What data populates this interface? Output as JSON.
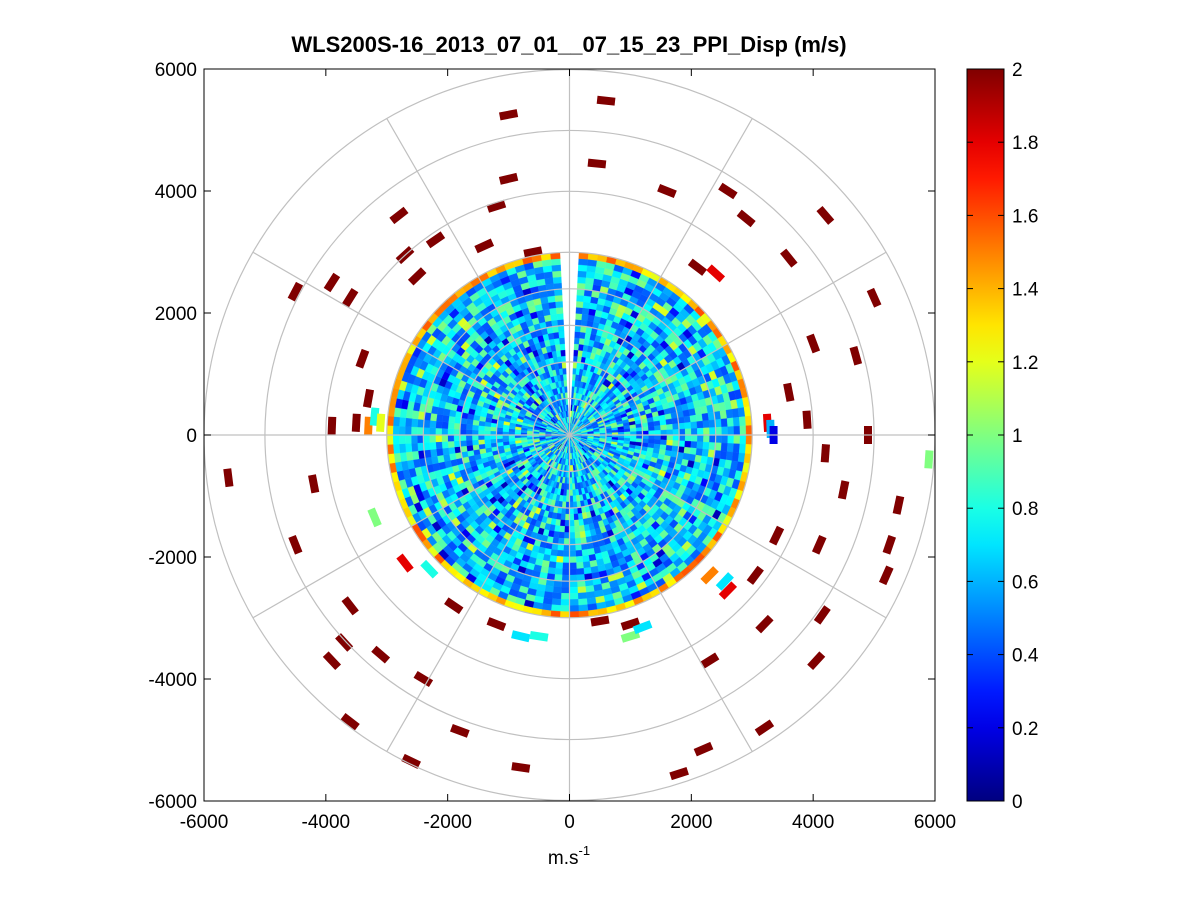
{
  "chart_data": {
    "type": "heatmap",
    "subtype": "polar-ppi",
    "title": "WLS200S-16_2013_07_01__07_15_23_PPI_Disp (m/s)",
    "xlabel": "m.s",
    "xlabel_superscript": "-1",
    "ylabel": "",
    "xlim": [
      -6000,
      6000
    ],
    "ylim": [
      -6000,
      6000
    ],
    "xticks": [
      -6000,
      -4000,
      -2000,
      0,
      2000,
      4000,
      6000
    ],
    "yticks": [
      6000,
      4000,
      2000,
      0,
      -2000,
      -4000,
      -6000
    ],
    "grid": true,
    "polar_grid": {
      "ring_radii": [
        600,
        1200,
        1800,
        2400,
        3000,
        4000,
        5000,
        6000
      ],
      "spoke_angles_deg": [
        0,
        30,
        60,
        90,
        120,
        150,
        180,
        210,
        240,
        270,
        300,
        330
      ]
    },
    "dense_region": {
      "inner_radius": 0,
      "outer_radius": 3000,
      "gap_azimuth_deg": [
        -3,
        3
      ],
      "typical_value_range": [
        0.4,
        1.0
      ],
      "edge_value_range": [
        1.2,
        1.6
      ],
      "center": [
        0,
        0
      ]
    },
    "sparse_returns": [
      {
        "x": 600,
        "y": 5480,
        "value": 2
      },
      {
        "x": -1200,
        "y": 3750,
        "value": 2
      },
      {
        "x": -2700,
        "y": 2950,
        "value": 2
      },
      {
        "x": -3600,
        "y": 2250,
        "value": 2
      },
      {
        "x": -4500,
        "y": 2350,
        "value": 2
      },
      {
        "x": -1000,
        "y": 5250,
        "value": 2
      },
      {
        "x": -1000,
        "y": 4200,
        "value": 2
      },
      {
        "x": -2800,
        "y": 3600,
        "value": 2
      },
      {
        "x": 450,
        "y": 4450,
        "value": 2
      },
      {
        "x": 1600,
        "y": 4000,
        "value": 2
      },
      {
        "x": 2600,
        "y": 4000,
        "value": 2
      },
      {
        "x": 2900,
        "y": 3550,
        "value": 2
      },
      {
        "x": 4200,
        "y": 3600,
        "value": 2
      },
      {
        "x": 2100,
        "y": 2750,
        "value": 2
      },
      {
        "x": 2400,
        "y": 2650,
        "value": 1.8
      },
      {
        "x": 3600,
        "y": 2900,
        "value": 2
      },
      {
        "x": 5000,
        "y": 2250,
        "value": 2
      },
      {
        "x": 4000,
        "y": 1500,
        "value": 2
      },
      {
        "x": 4700,
        "y": 1300,
        "value": 2
      },
      {
        "x": 3600,
        "y": 700,
        "value": 2
      },
      {
        "x": 3900,
        "y": 250,
        "value": 2
      },
      {
        "x": 4900,
        "y": 0,
        "value": 2
      },
      {
        "x": 5900,
        "y": -400,
        "value": 1.0
      },
      {
        "x": 3250,
        "y": 200,
        "value": 1.8
      },
      {
        "x": 3300,
        "y": 100,
        "value": 0.6
      },
      {
        "x": 3350,
        "y": 0,
        "value": 0.2
      },
      {
        "x": 4200,
        "y": -300,
        "value": 2
      },
      {
        "x": 4500,
        "y": -900,
        "value": 2
      },
      {
        "x": 5400,
        "y": -1150,
        "value": 2
      },
      {
        "x": 5250,
        "y": -1800,
        "value": 2
      },
      {
        "x": 5200,
        "y": -2300,
        "value": 2
      },
      {
        "x": 3400,
        "y": -1650,
        "value": 2
      },
      {
        "x": 4100,
        "y": -1800,
        "value": 2
      },
      {
        "x": 3050,
        "y": -2300,
        "value": 2
      },
      {
        "x": 2550,
        "y": -2400,
        "value": 0.7
      },
      {
        "x": 2300,
        "y": -2300,
        "value": 1.5
      },
      {
        "x": 2600,
        "y": -2550,
        "value": 1.8
      },
      {
        "x": 4150,
        "y": -2950,
        "value": 2
      },
      {
        "x": 4050,
        "y": -3700,
        "value": 2
      },
      {
        "x": 3200,
        "y": -3100,
        "value": 2
      },
      {
        "x": 2300,
        "y": -3700,
        "value": 2
      },
      {
        "x": 3200,
        "y": -4800,
        "value": 2
      },
      {
        "x": 2200,
        "y": -5150,
        "value": 2
      },
      {
        "x": 1800,
        "y": -5550,
        "value": 2
      },
      {
        "x": 1000,
        "y": -3100,
        "value": 2
      },
      {
        "x": 1000,
        "y": -3300,
        "value": 1.0
      },
      {
        "x": 1200,
        "y": -3150,
        "value": 0.7
      },
      {
        "x": 500,
        "y": -3050,
        "value": 2
      },
      {
        "x": -1200,
        "y": -3100,
        "value": 2
      },
      {
        "x": -800,
        "y": -3300,
        "value": 0.7
      },
      {
        "x": -500,
        "y": -3300,
        "value": 0.8
      },
      {
        "x": -1900,
        "y": -2800,
        "value": 2
      },
      {
        "x": -2300,
        "y": -2200,
        "value": 0.8
      },
      {
        "x": -2700,
        "y": -2100,
        "value": 1.8
      },
      {
        "x": -3200,
        "y": -1350,
        "value": 1.0
      },
      {
        "x": -3600,
        "y": -2800,
        "value": 2
      },
      {
        "x": -3700,
        "y": -3400,
        "value": 2
      },
      {
        "x": -3900,
        "y": -3700,
        "value": 2
      },
      {
        "x": -3100,
        "y": -3600,
        "value": 2
      },
      {
        "x": -2400,
        "y": -4000,
        "value": 2
      },
      {
        "x": -1800,
        "y": -4850,
        "value": 2
      },
      {
        "x": -800,
        "y": -5450,
        "value": 2
      },
      {
        "x": -3600,
        "y": -4700,
        "value": 2
      },
      {
        "x": -2600,
        "y": -5350,
        "value": 2
      },
      {
        "x": -4500,
        "y": -1800,
        "value": 2
      },
      {
        "x": -4200,
        "y": -800,
        "value": 2
      },
      {
        "x": -5600,
        "y": -700,
        "value": 2
      },
      {
        "x": -3900,
        "y": 150,
        "value": 2
      },
      {
        "x": -3500,
        "y": 200,
        "value": 2
      },
      {
        "x": -3300,
        "y": 150,
        "value": 1.5
      },
      {
        "x": -3200,
        "y": 300,
        "value": 0.8
      },
      {
        "x": -3100,
        "y": 200,
        "value": 1.2
      },
      {
        "x": -3300,
        "y": 600,
        "value": 2
      },
      {
        "x": -3400,
        "y": 1250,
        "value": 2
      },
      {
        "x": -3900,
        "y": 2500,
        "value": 2
      },
      {
        "x": -2500,
        "y": 2600,
        "value": 2
      },
      {
        "x": -1400,
        "y": 3100,
        "value": 2
      },
      {
        "x": -600,
        "y": 3000,
        "value": 2
      },
      {
        "x": -2200,
        "y": 3200,
        "value": 2
      }
    ],
    "colorbar": {
      "colormap": "jet",
      "range": [
        0,
        2
      ],
      "ticks": [
        "2",
        "1.8",
        "1.6",
        "1.4",
        "1.2",
        "1",
        "0.8",
        "0.6",
        "0.4",
        "0.2",
        "0"
      ]
    }
  }
}
